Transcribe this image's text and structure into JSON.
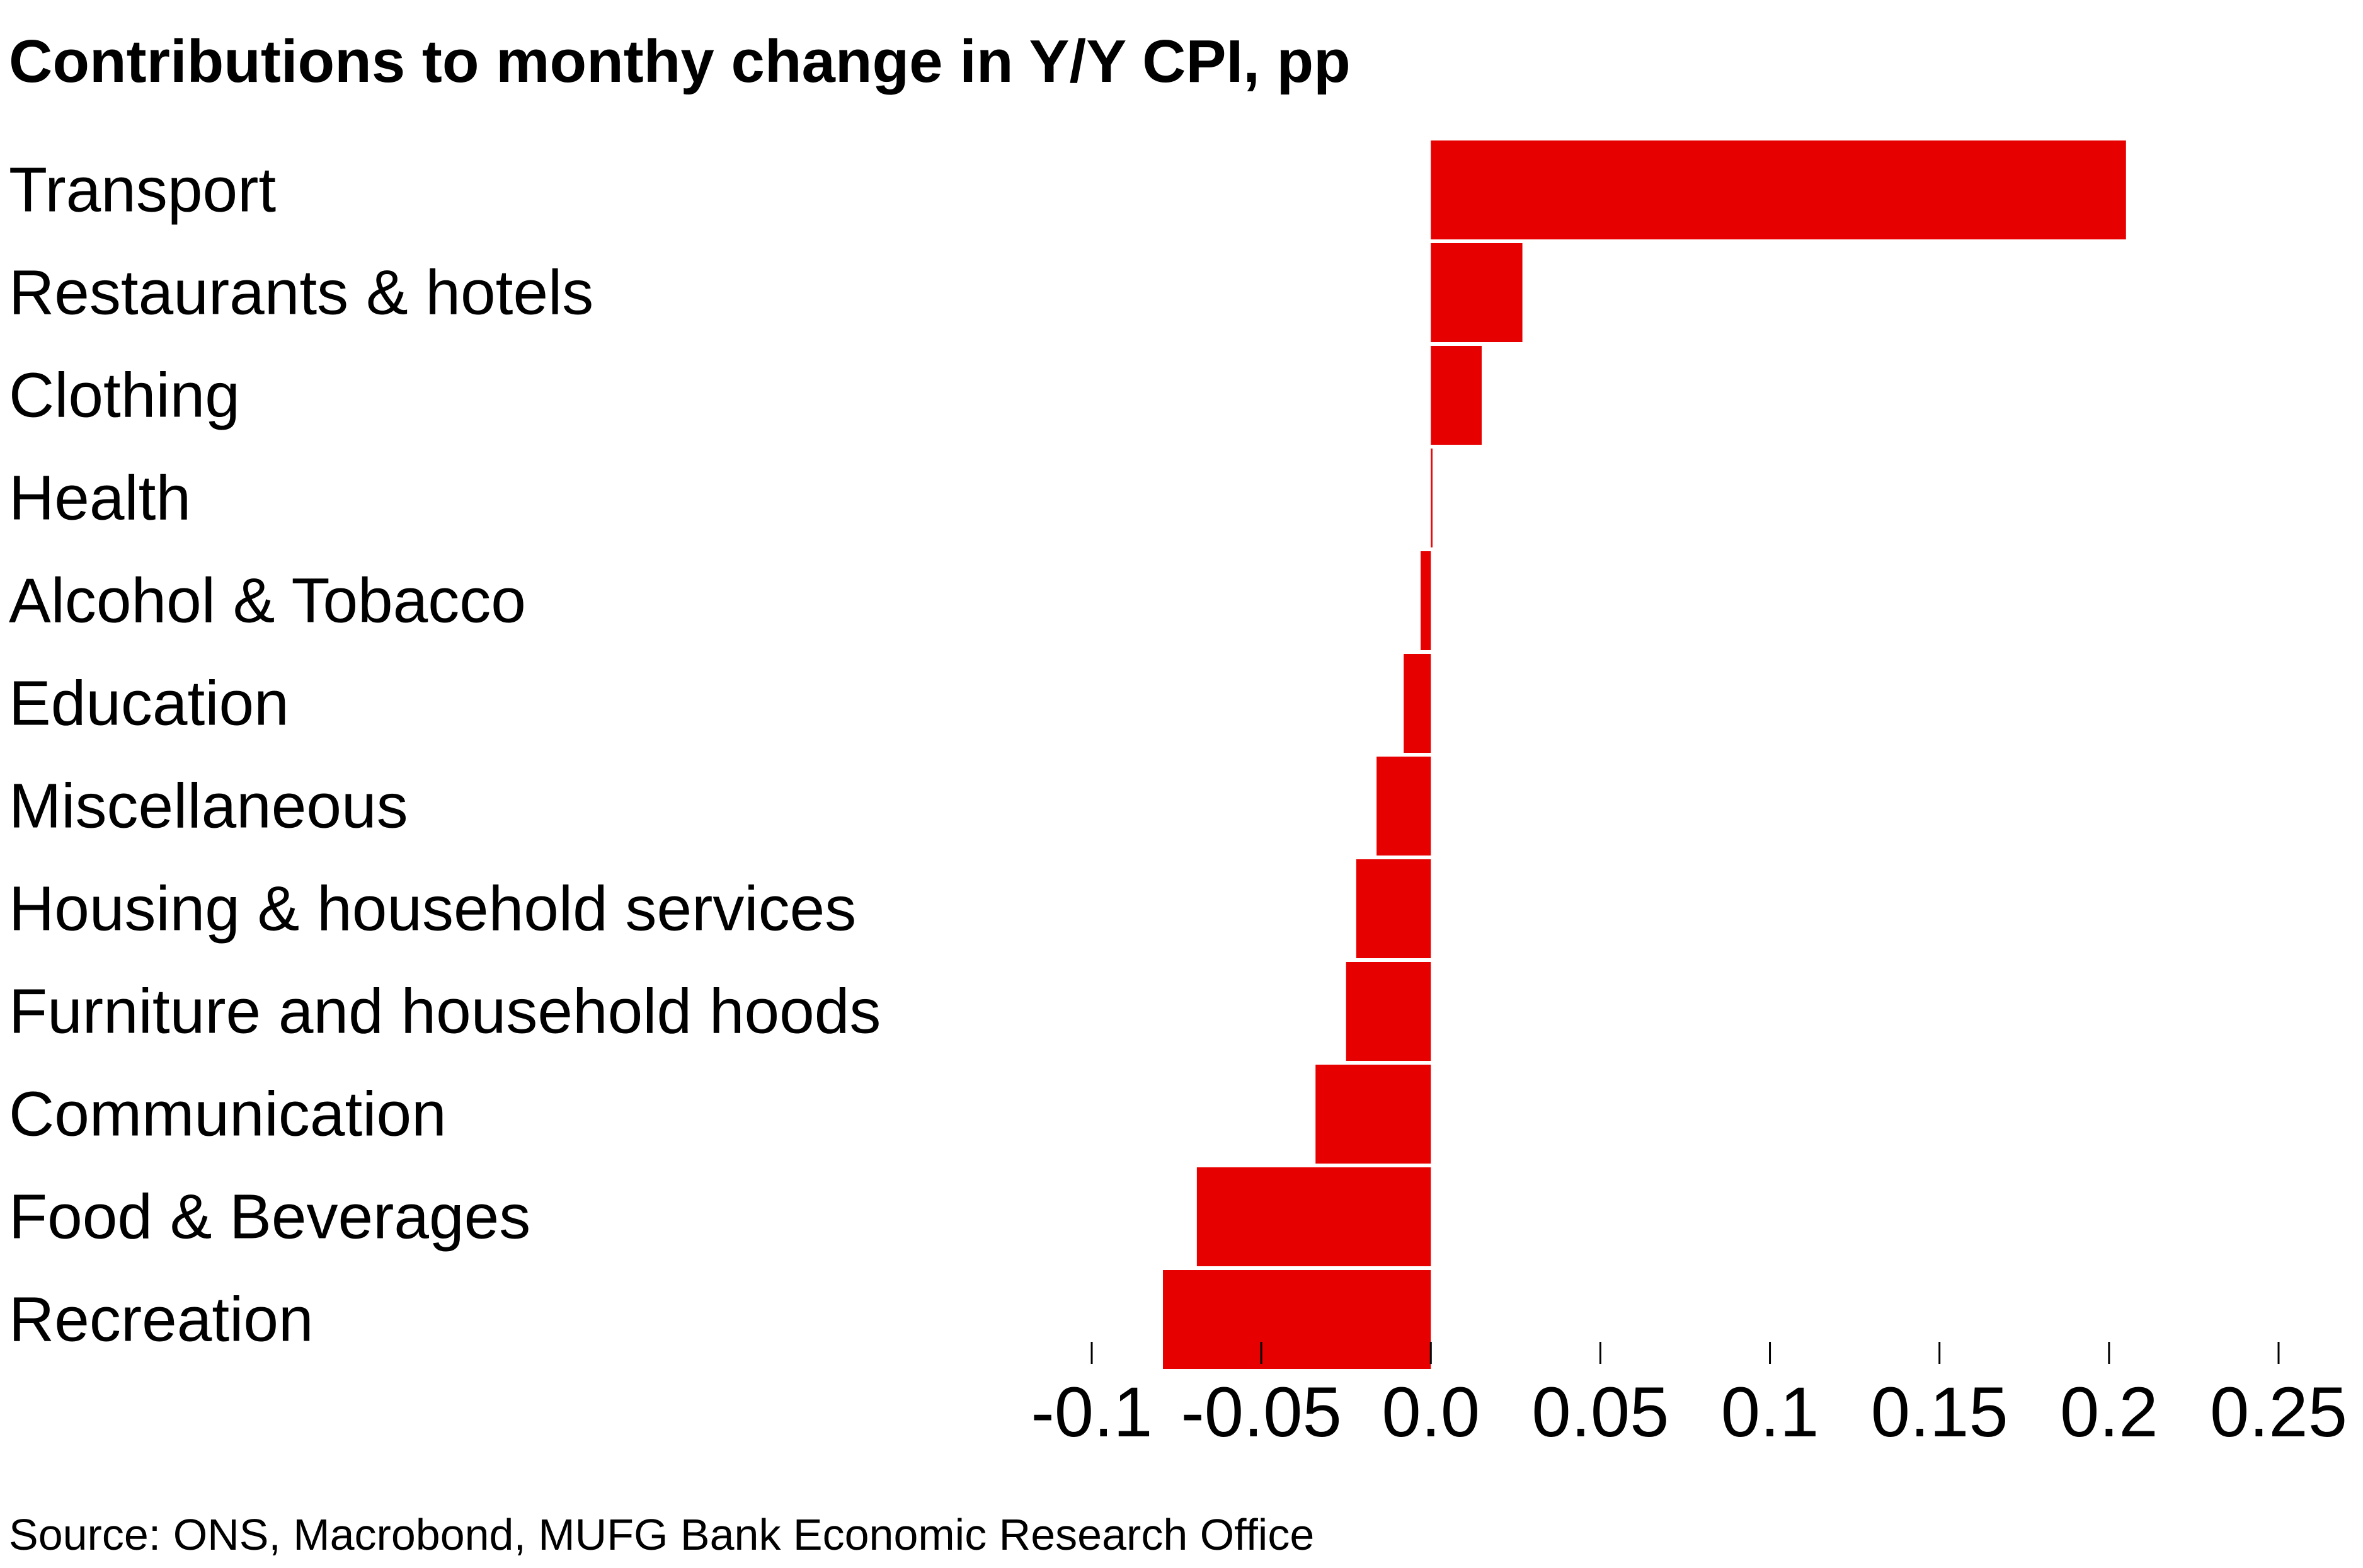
{
  "chart_data": {
    "type": "bar",
    "orientation": "horizontal",
    "title": "Contributions to monthy change in Y/Y CPI, pp",
    "categories": [
      "Transport",
      "Restaurants & hotels",
      "Clothing",
      "Health",
      "Alcohol & Tobacco",
      "Education",
      "Miscellaneous",
      "Housing & household services",
      "Furniture and household hoods",
      "Communication",
      "Food & Beverages",
      "Recreation"
    ],
    "values": [
      0.205,
      0.027,
      0.015,
      0.0005,
      -0.003,
      -0.008,
      -0.016,
      -0.022,
      -0.025,
      -0.034,
      -0.069,
      -0.079
    ],
    "xlim": [
      -0.1,
      0.25
    ],
    "xticks": [
      -0.1,
      -0.05,
      0.0,
      0.05,
      0.1,
      0.15,
      0.2,
      0.25
    ],
    "xtick_labels": [
      "-0.1",
      "-0.05",
      "0.0",
      "0.05",
      "0.1",
      "0.15",
      "0.2",
      "0.25"
    ],
    "xlabel": "",
    "ylabel": "",
    "grid": false,
    "legend": "none",
    "source": "Source: ONS, Macrobond, MUFG Bank Economic Research Office",
    "colors": {
      "bar": "#E60000",
      "text": "#000000",
      "axis": "#000000",
      "background": "#FFFFFF"
    }
  }
}
